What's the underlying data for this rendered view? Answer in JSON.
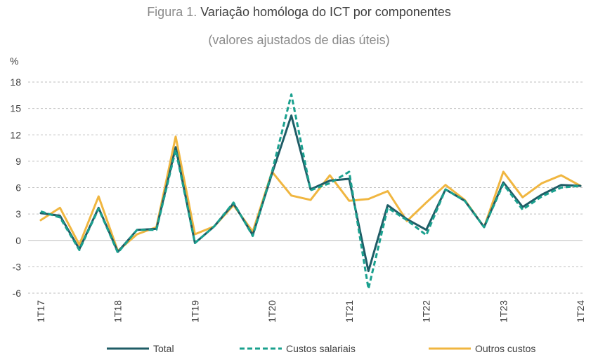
{
  "title": {
    "prefix": "Figura 1.",
    "main": "Variação homóloga do ICT por componentes"
  },
  "subtitle": "(valores ajustados de dias úteis)",
  "chart_data": {
    "type": "line",
    "ylabel": "%",
    "ylim": [
      -6,
      18
    ],
    "yticks": [
      -6,
      -3,
      0,
      3,
      6,
      9,
      12,
      15,
      18
    ],
    "grid": "horizontal dashed",
    "legend": "bottom",
    "categories": [
      "1T17",
      "2T17",
      "3T17",
      "4T17",
      "1T18",
      "2T18",
      "3T18",
      "4T18",
      "1T19",
      "2T19",
      "3T19",
      "4T19",
      "1T20",
      "2T20",
      "3T20",
      "4T20",
      "1T21",
      "2T21",
      "3T21",
      "4T21",
      "1T22",
      "2T22",
      "3T22",
      "4T22",
      "1T23",
      "2T23",
      "3T23",
      "4T23",
      "1T24"
    ],
    "tick_labels": [
      "1T17",
      "1T18",
      "1T19",
      "1T20",
      "1T21",
      "1T22",
      "1T23",
      "1T24"
    ],
    "series": [
      {
        "name": "Total",
        "color": "#1f5c66",
        "style": "solid",
        "values": [
          3.1,
          2.8,
          -1.0,
          3.7,
          -1.3,
          1.2,
          1.3,
          10.6,
          -0.3,
          1.6,
          4.2,
          0.6,
          7.6,
          14.2,
          5.8,
          6.8,
          7.0,
          -3.5,
          4.0,
          2.4,
          1.2,
          5.8,
          4.5,
          1.5,
          6.6,
          3.8,
          5.2,
          6.3,
          6.2
        ]
      },
      {
        "name": "Custos salariais",
        "color": "#1aa08e",
        "style": "dashed",
        "values": [
          3.3,
          2.6,
          -1.1,
          3.6,
          -1.4,
          1.2,
          1.2,
          10.3,
          -0.3,
          1.6,
          4.3,
          0.5,
          7.8,
          16.6,
          5.7,
          6.5,
          7.8,
          -5.5,
          3.7,
          2.3,
          0.6,
          5.8,
          4.5,
          1.5,
          6.4,
          3.5,
          5.0,
          6.0,
          6.2
        ]
      },
      {
        "name": "Outros custos",
        "color": "#f0b640",
        "style": "solid",
        "values": [
          2.3,
          3.7,
          -0.5,
          5.0,
          -1.2,
          0.7,
          1.5,
          11.8,
          0.7,
          1.6,
          4.0,
          1.0,
          7.8,
          5.1,
          4.6,
          7.4,
          4.5,
          4.7,
          5.6,
          2.2,
          4.3,
          6.3,
          4.6,
          1.5,
          7.8,
          4.9,
          6.5,
          7.4,
          6.2
        ]
      }
    ]
  }
}
